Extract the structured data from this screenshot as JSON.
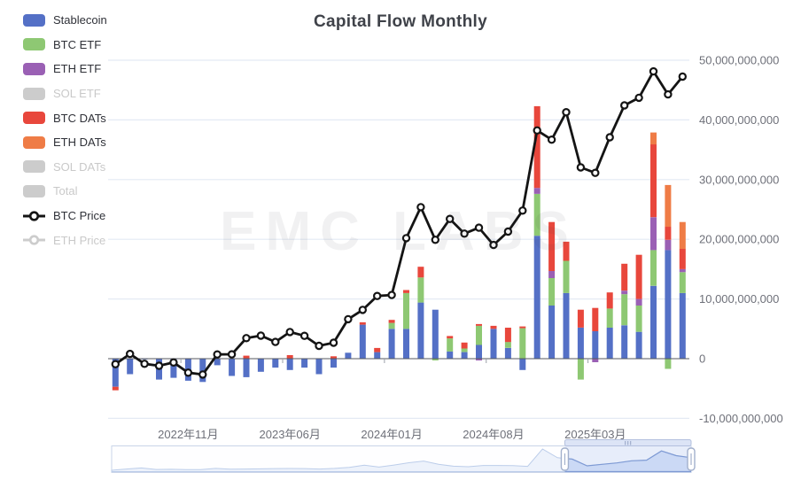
{
  "title": "Capital Flow Monthly",
  "watermark": "EMC LABS",
  "colors": {
    "stablecoin": "#5470C6",
    "btc_etf": "#8EC873",
    "eth_etf": "#9A60B4",
    "btc_dats": "#E8473C",
    "eth_dats": "#EF7C46",
    "disabled": "#CCCCCC",
    "price_line": "#141414",
    "grid_line": "#E4EAF4",
    "zero_line": "#54575E",
    "axis_text": "#6E7079",
    "slider_border": "#C9D4E8",
    "slider_area_fill": "#EDF2FB",
    "slider_area_line": "#BCCDEA",
    "slider_sel_fill": "#D4DFF6",
    "slider_sel_line": "#7E9AD4",
    "slider_handle": "#A2B0CC"
  },
  "legend": {
    "items": [
      {
        "key": "stablecoin",
        "label": "Stablecoin",
        "type": "bar",
        "color": "#5470C6",
        "enabled": true
      },
      {
        "key": "btc_etf",
        "label": "BTC ETF",
        "type": "bar",
        "color": "#8EC873",
        "enabled": true
      },
      {
        "key": "eth_etf",
        "label": "ETH ETF",
        "type": "bar",
        "color": "#9A60B4",
        "enabled": true
      },
      {
        "key": "sol_etf",
        "label": "SOL ETF",
        "type": "bar",
        "color": "#CCCCCC",
        "enabled": false
      },
      {
        "key": "btc_dats",
        "label": "BTC DATs",
        "type": "bar",
        "color": "#E8473C",
        "enabled": true
      },
      {
        "key": "eth_dats",
        "label": "ETH DATs",
        "type": "bar",
        "color": "#EF7C46",
        "enabled": true
      },
      {
        "key": "sol_dats",
        "label": "SOL DATs",
        "type": "bar",
        "color": "#CCCCCC",
        "enabled": false
      },
      {
        "key": "total",
        "label": "Total",
        "type": "bar",
        "color": "#CCCCCC",
        "enabled": false
      },
      {
        "key": "btc_price",
        "label": "BTC Price",
        "type": "line",
        "color": "#141414",
        "enabled": true
      },
      {
        "key": "eth_price",
        "label": "ETH Price",
        "type": "line",
        "color": "#CCCCCC",
        "enabled": false
      }
    ]
  },
  "y_axis": {
    "side": "right",
    "tick_labels": [
      "50,000,000,000",
      "40,000,000,000",
      "30,000,000,000",
      "20,000,000,000",
      "10,000,000,000",
      "0",
      "-10,000,000,000"
    ],
    "tick_values_billion": [
      50,
      40,
      30,
      20,
      10,
      0,
      -10
    ]
  },
  "x_axis": {
    "labels": [
      {
        "text": "2022年11月",
        "month_index": 5
      },
      {
        "text": "2023年06月",
        "month_index": 12
      },
      {
        "text": "2024年01月",
        "month_index": 19
      },
      {
        "text": "2024年08月",
        "month_index": 26
      },
      {
        "text": "2025年03月",
        "month_index": 33
      }
    ]
  },
  "chart_data": {
    "type": "bar+line",
    "unit": "billion USD",
    "x": [
      "2022-06",
      "2022-07",
      "2022-08",
      "2022-09",
      "2022-10",
      "2022-11",
      "2022-12",
      "2023-01",
      "2023-02",
      "2023-03",
      "2023-04",
      "2023-05",
      "2023-06",
      "2023-07",
      "2023-08",
      "2023-09",
      "2023-10",
      "2023-11",
      "2023-12",
      "2024-01",
      "2024-02",
      "2024-03",
      "2024-04",
      "2024-05",
      "2024-06",
      "2024-07",
      "2024-08",
      "2024-09",
      "2024-10",
      "2024-11",
      "2024-12",
      "2025-01",
      "2025-02",
      "2025-03",
      "2025-04",
      "2025-05",
      "2025-06",
      "2025-07",
      "2025-08",
      "2025-09"
    ],
    "series": [
      {
        "name": "Stablecoin",
        "kind": "bar",
        "stack": "flow",
        "color": "#5470C6",
        "values": [
          -4.7,
          -2.6,
          -0.1,
          -3.5,
          -3.2,
          -3.7,
          -3.9,
          -1.1,
          -2.9,
          -3.1,
          -2.2,
          -1.5,
          -1.9,
          -1.5,
          -2.6,
          -1.5,
          1.0,
          5.7,
          1.1,
          5.0,
          5.0,
          9.4,
          8.2,
          1.2,
          1.1,
          2.3,
          5.0,
          1.8,
          -1.9,
          20.6,
          8.9,
          11.0,
          5.2,
          4.6,
          5.2,
          5.6,
          4.5,
          12.2,
          18.2,
          11.0
        ]
      },
      {
        "name": "BTC ETF",
        "kind": "bar",
        "stack": "flow",
        "color": "#8EC873",
        "values": [
          0,
          0,
          0,
          0,
          0,
          0,
          0,
          0,
          0,
          0,
          0,
          0,
          0,
          0,
          0,
          0,
          0,
          0,
          0,
          1.0,
          6.0,
          4.2,
          -0.3,
          2.2,
          0.6,
          3.2,
          0,
          1.0,
          5.1,
          7.0,
          4.6,
          5.4,
          -3.5,
          0,
          3.2,
          5.2,
          4.4,
          6.0,
          -1.7,
          3.5
        ]
      },
      {
        "name": "ETH ETF",
        "kind": "bar",
        "stack": "flow",
        "color": "#9A60B4",
        "values": [
          0,
          0,
          0,
          0,
          0,
          0,
          0,
          0,
          0,
          0,
          0,
          0,
          0,
          0,
          0,
          0,
          0,
          0,
          0,
          0,
          0,
          0,
          0,
          0,
          0,
          -0.3,
          0,
          0,
          0,
          1.0,
          1.2,
          0,
          0,
          -0.6,
          0,
          0.6,
          1.1,
          5.5,
          1.7,
          0.5
        ]
      },
      {
        "name": "BTC DATs",
        "kind": "bar",
        "stack": "flow",
        "color": "#E8473C",
        "values": [
          -0.6,
          0,
          0,
          0,
          0,
          0,
          0,
          0,
          0,
          0.5,
          0,
          0,
          0.6,
          0,
          0,
          0.4,
          0,
          0.4,
          0.7,
          0.5,
          0.5,
          1.8,
          0,
          0.4,
          1.0,
          0.3,
          0.5,
          2.4,
          0.3,
          13.7,
          8.2,
          3.2,
          3.0,
          3.9,
          2.7,
          4.5,
          7.4,
          12.2,
          2.2,
          3.4
        ]
      },
      {
        "name": "ETH DATs",
        "kind": "bar",
        "stack": "flow",
        "color": "#EF7C46",
        "values": [
          0,
          0,
          0,
          0,
          0,
          0,
          0,
          0,
          0,
          0,
          0,
          0,
          0,
          0,
          0,
          0,
          0,
          0,
          0,
          0,
          0,
          0,
          0,
          0,
          0,
          0,
          0,
          0,
          0,
          0,
          0,
          0,
          0,
          0,
          0,
          0,
          0,
          2.0,
          7.0,
          4.5
        ]
      },
      {
        "name": "BTC Price",
        "kind": "line",
        "yaxis": "price_usd",
        "color": "#141414",
        "values": [
          19942,
          23303,
          20050,
          19432,
          20490,
          17168,
          16547,
          23125,
          23147,
          28478,
          29268,
          27219,
          30477,
          29230,
          25932,
          26967,
          34667,
          37723,
          42265,
          42580,
          61198,
          71333,
          60636,
          67491,
          62678,
          64619,
          58969,
          63329,
          70215,
          96449,
          93429,
          102405,
          84349,
          82548,
          94207,
          104638,
          107135,
          115758,
          108236,
          114056
        ]
      }
    ],
    "flow_axis": {
      "min_billion": -10,
      "max_billion": 50,
      "grid": true,
      "labels_side": "right"
    },
    "price_axis": {
      "visible": false
    }
  },
  "datazoom": {
    "window_start_index": 31,
    "window_end_index": 39
  }
}
